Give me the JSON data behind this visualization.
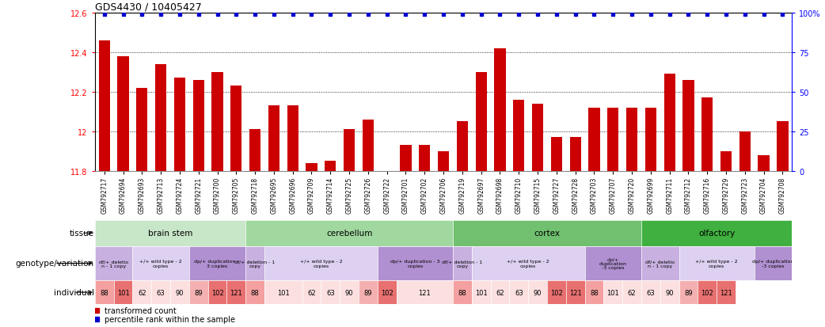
{
  "title": "GDS4430 / 10405427",
  "gsm_ids": [
    "GSM792717",
    "GSM792694",
    "GSM792693",
    "GSM792713",
    "GSM792724",
    "GSM792721",
    "GSM792700",
    "GSM792705",
    "GSM792718",
    "GSM792695",
    "GSM792696",
    "GSM792709",
    "GSM792714",
    "GSM792725",
    "GSM792726",
    "GSM792722",
    "GSM792701",
    "GSM792702",
    "GSM792706",
    "GSM792719",
    "GSM792697",
    "GSM792698",
    "GSM792710",
    "GSM792715",
    "GSM792727",
    "GSM792728",
    "GSM792703",
    "GSM792707",
    "GSM792720",
    "GSM792699",
    "GSM792711",
    "GSM792712",
    "GSM792716",
    "GSM792729",
    "GSM792723",
    "GSM792704",
    "GSM792708"
  ],
  "bar_values": [
    12.46,
    12.38,
    12.22,
    12.34,
    12.27,
    12.26,
    12.3,
    12.23,
    12.01,
    12.13,
    12.13,
    11.84,
    11.85,
    12.01,
    12.06,
    11.8,
    11.93,
    11.93,
    11.9,
    12.05,
    12.3,
    12.42,
    12.16,
    12.14,
    11.97,
    11.97,
    12.12,
    12.12,
    12.12,
    12.12,
    12.29,
    12.26,
    12.17,
    11.9,
    12.0,
    11.88,
    12.05
  ],
  "bar_color": "#cc0000",
  "percentile_color": "#0000cc",
  "ymin": 11.8,
  "ymax": 12.6,
  "y2min": 0,
  "y2max": 100,
  "ytick_vals": [
    11.8,
    12.0,
    12.2,
    12.4,
    12.6
  ],
  "ytick_labels": [
    "11.8",
    "12",
    "12.2",
    "12.4",
    "12.6"
  ],
  "y2tick_vals": [
    0,
    25,
    50,
    75,
    100
  ],
  "y2tick_labels": [
    "0",
    "25",
    "50",
    "75",
    "100%"
  ],
  "hgrid_vals": [
    12.0,
    12.2,
    12.4
  ],
  "tissues": [
    {
      "label": "brain stem",
      "start": 0,
      "end": 8,
      "color": "#c8e6c8"
    },
    {
      "label": "cerebellum",
      "start": 8,
      "end": 19,
      "color": "#a0d8a0"
    },
    {
      "label": "cortex",
      "start": 19,
      "end": 29,
      "color": "#70c070"
    },
    {
      "label": "olfactory",
      "start": 29,
      "end": 37,
      "color": "#40b040"
    }
  ],
  "genotype_groups": [
    {
      "label": "df/+ deletio\nn - 1 copy",
      "start": 0,
      "end": 2,
      "color": "#c8b0e0"
    },
    {
      "label": "+/+ wild type - 2\ncopies",
      "start": 2,
      "end": 5,
      "color": "#ddd0f0"
    },
    {
      "label": "dp/+ duplication - \n3 copies",
      "start": 5,
      "end": 8,
      "color": "#b090d0"
    },
    {
      "label": "df/+ deletion - 1\ncopy",
      "start": 8,
      "end": 9,
      "color": "#c8b0e0"
    },
    {
      "label": "+/+ wild type - 2\ncopies",
      "start": 9,
      "end": 15,
      "color": "#ddd0f0"
    },
    {
      "label": "dp/+ duplication - 3\ncopies",
      "start": 15,
      "end": 19,
      "color": "#b090d0"
    },
    {
      "label": "df/+ deletion - 1\ncopy",
      "start": 19,
      "end": 20,
      "color": "#c8b0e0"
    },
    {
      "label": "+/+ wild type - 2\ncopies",
      "start": 20,
      "end": 26,
      "color": "#ddd0f0"
    },
    {
      "label": "dp/+\nduplication\n-3 copies",
      "start": 26,
      "end": 29,
      "color": "#b090d0"
    },
    {
      "label": "df/+ deletio\nn - 1 copy",
      "start": 29,
      "end": 31,
      "color": "#c8b0e0"
    },
    {
      "label": "+/+ wild type - 2\ncopies",
      "start": 31,
      "end": 35,
      "color": "#ddd0f0"
    },
    {
      "label": "dp/+ duplication\n-3 copies",
      "start": 35,
      "end": 37,
      "color": "#b090d0"
    }
  ],
  "indiv_data": [
    {
      "label": "88",
      "start": 0,
      "end": 1,
      "color": "#f4a0a0"
    },
    {
      "label": "101",
      "start": 1,
      "end": 2,
      "color": "#e87070"
    },
    {
      "label": "62",
      "start": 2,
      "end": 3,
      "color": "#fce0e0"
    },
    {
      "label": "63",
      "start": 3,
      "end": 4,
      "color": "#fce0e0"
    },
    {
      "label": "90",
      "start": 4,
      "end": 5,
      "color": "#fce0e0"
    },
    {
      "label": "89",
      "start": 5,
      "end": 6,
      "color": "#f4b0b0"
    },
    {
      "label": "102",
      "start": 6,
      "end": 7,
      "color": "#e87070"
    },
    {
      "label": "121",
      "start": 7,
      "end": 8,
      "color": "#e87070"
    },
    {
      "label": "88",
      "start": 8,
      "end": 9,
      "color": "#f4a0a0"
    },
    {
      "label": "101",
      "start": 9,
      "end": 11,
      "color": "#fce0e0"
    },
    {
      "label": "62",
      "start": 11,
      "end": 12,
      "color": "#fce0e0"
    },
    {
      "label": "63",
      "start": 12,
      "end": 13,
      "color": "#fce0e0"
    },
    {
      "label": "90",
      "start": 13,
      "end": 14,
      "color": "#fce0e0"
    },
    {
      "label": "89",
      "start": 14,
      "end": 15,
      "color": "#f4b0b0"
    },
    {
      "label": "102",
      "start": 15,
      "end": 16,
      "color": "#e87070"
    },
    {
      "label": "121",
      "start": 16,
      "end": 19,
      "color": "#fce0e0"
    },
    {
      "label": "88",
      "start": 19,
      "end": 20,
      "color": "#f4a0a0"
    },
    {
      "label": "101",
      "start": 20,
      "end": 21,
      "color": "#fce0e0"
    },
    {
      "label": "62",
      "start": 21,
      "end": 22,
      "color": "#fce0e0"
    },
    {
      "label": "63",
      "start": 22,
      "end": 23,
      "color": "#fce0e0"
    },
    {
      "label": "90",
      "start": 23,
      "end": 24,
      "color": "#fce0e0"
    },
    {
      "label": "102",
      "start": 24,
      "end": 25,
      "color": "#e87070"
    },
    {
      "label": "121",
      "start": 25,
      "end": 26,
      "color": "#e87070"
    },
    {
      "label": "88",
      "start": 26,
      "end": 27,
      "color": "#f4a0a0"
    },
    {
      "label": "101",
      "start": 27,
      "end": 28,
      "color": "#fce0e0"
    },
    {
      "label": "62",
      "start": 28,
      "end": 29,
      "color": "#fce0e0"
    },
    {
      "label": "63",
      "start": 29,
      "end": 30,
      "color": "#fce0e0"
    },
    {
      "label": "90",
      "start": 30,
      "end": 31,
      "color": "#fce0e0"
    },
    {
      "label": "89",
      "start": 31,
      "end": 32,
      "color": "#f4b0b0"
    },
    {
      "label": "102",
      "start": 32,
      "end": 33,
      "color": "#e87070"
    },
    {
      "label": "121",
      "start": 33,
      "end": 34,
      "color": "#e87070"
    }
  ],
  "legend_bar_label": "transformed count",
  "legend_pct_label": "percentile rank within the sample"
}
